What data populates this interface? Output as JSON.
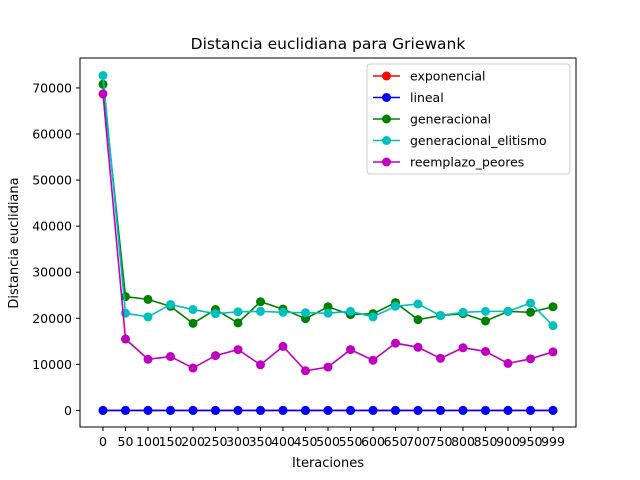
{
  "chart_data": {
    "type": "line",
    "title": "Distancia euclidiana para Griewank",
    "xlabel": "Iteraciones",
    "ylabel": "Distancia euclidiana",
    "categories": [
      "0",
      "50",
      "100",
      "150",
      "200",
      "250",
      "300",
      "350",
      "400",
      "450",
      "500",
      "550",
      "600",
      "650",
      "700",
      "750",
      "800",
      "850",
      "900",
      "950",
      "999"
    ],
    "ylim": [
      -3600,
      76500
    ],
    "yticks": [
      0,
      10000,
      20000,
      30000,
      40000,
      50000,
      60000,
      70000
    ],
    "ytick_labels": [
      "0",
      "10000",
      "20000",
      "30000",
      "40000",
      "50000",
      "60000",
      "70000"
    ],
    "grid": false,
    "legend_position": "top-right",
    "series": [
      {
        "name": "exponencial",
        "color": "#ff0000",
        "values": [
          0,
          0,
          0,
          0,
          0,
          0,
          0,
          0,
          0,
          0,
          0,
          0,
          0,
          0,
          0,
          0,
          0,
          0,
          0,
          0,
          0
        ]
      },
      {
        "name": "lineal",
        "color": "#0000ff",
        "values": [
          0,
          0,
          0,
          0,
          0,
          0,
          0,
          0,
          0,
          0,
          0,
          0,
          0,
          0,
          0,
          0,
          0,
          0,
          0,
          0,
          0
        ]
      },
      {
        "name": "generacional",
        "color": "#008000",
        "values": [
          70800,
          24700,
          24100,
          22600,
          18900,
          21900,
          19000,
          23600,
          22000,
          19900,
          22500,
          20800,
          21000,
          23400,
          19700,
          20600,
          21000,
          19400,
          21500,
          21300,
          22500
        ]
      },
      {
        "name": "generacional_elitismo",
        "color": "#00bfbf",
        "values": [
          72700,
          21100,
          20300,
          23000,
          21900,
          21000,
          21400,
          21500,
          21300,
          21200,
          21100,
          21500,
          20300,
          22600,
          23100,
          20600,
          21300,
          21500,
          21500,
          23300,
          18400
        ]
      },
      {
        "name": "reemplazo_peores",
        "color": "#bf00bf",
        "values": [
          68700,
          15500,
          11100,
          11700,
          9200,
          11900,
          13200,
          9900,
          13900,
          8600,
          9400,
          13200,
          10900,
          14600,
          13700,
          11300,
          13600,
          12800,
          10200,
          11200,
          12700
        ]
      }
    ]
  }
}
